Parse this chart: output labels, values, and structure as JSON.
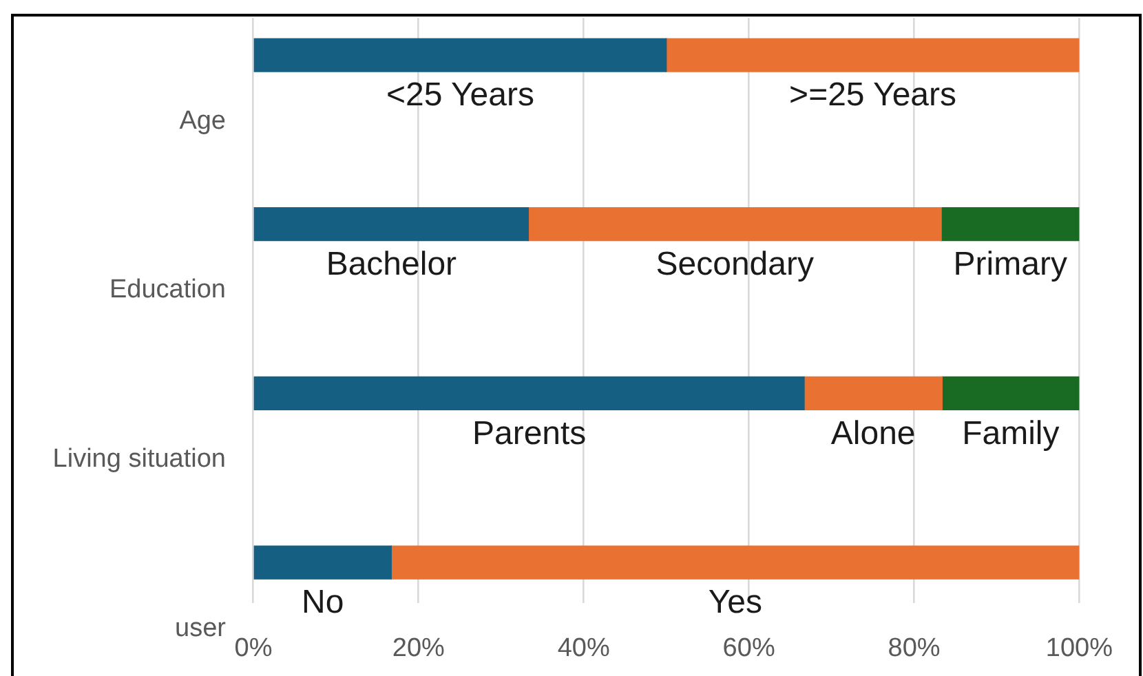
{
  "chart_data": {
    "type": "bar",
    "orientation": "horizontal",
    "stacked": true,
    "categories": [
      "Age",
      "Education",
      "Living situation",
      "user"
    ],
    "series": [
      {
        "color": "#156082",
        "values": [
          50,
          33.3,
          66.7,
          16.7
        ],
        "value_labels": [
          "<25 Years",
          "Bachelor",
          "Parents",
          "No"
        ]
      },
      {
        "color": "#e97132",
        "values": [
          50,
          50,
          16.7,
          83.3
        ],
        "value_labels": [
          ">=25 Years",
          "Secondary",
          "Alone",
          "Yes"
        ]
      },
      {
        "color": "#196b24",
        "values": [
          null,
          16.7,
          16.6,
          null
        ],
        "value_labels": [
          null,
          "Primary",
          "Family",
          null
        ]
      }
    ],
    "xlim": [
      0,
      100
    ],
    "xticks": [
      {
        "value": 0,
        "label": "0%"
      },
      {
        "value": 20,
        "label": "20%"
      },
      {
        "value": 40,
        "label": "40%"
      },
      {
        "value": 60,
        "label": "60%"
      },
      {
        "value": 80,
        "label": "80%"
      },
      {
        "value": 100,
        "label": "100%"
      }
    ],
    "grid": "x"
  }
}
